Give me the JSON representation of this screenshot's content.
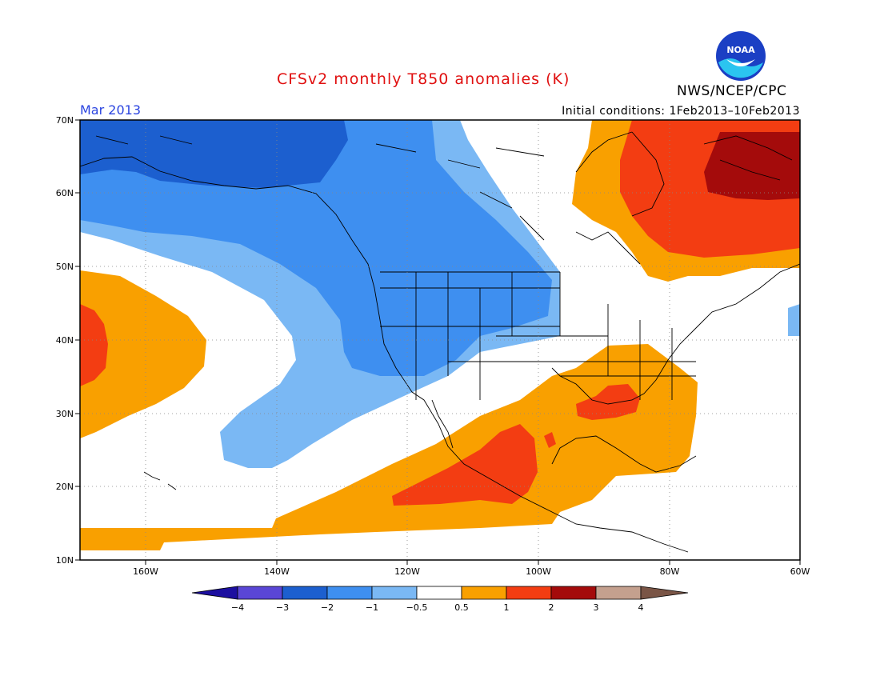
{
  "header": {
    "title": "CFSv2 monthly T850 anomalies (K)",
    "month": "Mar 2013",
    "initial_conditions": "Initial conditions: 1Feb2013–10Feb2013",
    "agency": "NWS/NCEP/CPC",
    "logo_text": "NOAA"
  },
  "axes": {
    "lat_labels": [
      "70N",
      "60N",
      "50N",
      "40N",
      "30N",
      "20N",
      "10N"
    ],
    "lon_labels": [
      "160W",
      "140W",
      "120W",
      "100W",
      "80W",
      "60W"
    ]
  },
  "colorbar": {
    "labels": [
      "−4",
      "−3",
      "−2",
      "−1",
      "−0.5",
      "0.5",
      "1",
      "2",
      "3",
      "4"
    ],
    "colors": {
      "lt_minus4": "#1c0fa0",
      "m4_m3": "#5a46d6",
      "m3_m2": "#1c5fcf",
      "m2_m1": "#3e8ff0",
      "m1_m05": "#7ab8f4",
      "neutral": "#ffffff",
      "p05_p1": "#f9a000",
      "p1_p2": "#f33d12",
      "p2_p3": "#a40b0b",
      "p3_p4": "#c4a08e",
      "gt_p4": "#7a5546"
    }
  }
}
